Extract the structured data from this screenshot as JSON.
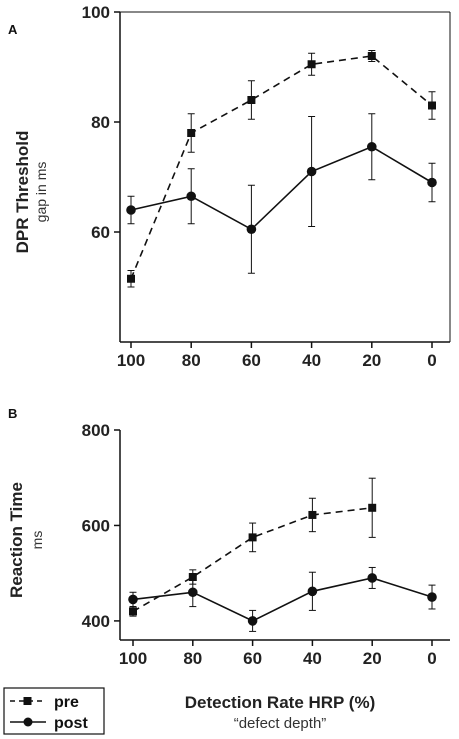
{
  "figure": {
    "xlabel": "Detection Rate HRP (%)",
    "xsublabel": "“defect depth”",
    "legend": [
      {
        "label": "pre",
        "marker": "square",
        "line": "dashed"
      },
      {
        "label": "post",
        "marker": "circle",
        "line": "solid"
      }
    ]
  },
  "chart_data": [
    {
      "panel": "A",
      "type": "line",
      "ylabel": "DPR Threshold",
      "ysublabel": "gap in ms",
      "x": [
        100,
        80,
        60,
        40,
        20,
        0
      ],
      "xticks": [
        "100",
        "80",
        "60",
        "40",
        "20",
        "0"
      ],
      "xlim": [
        100,
        0
      ],
      "yticks": [
        "60",
        "80",
        "100"
      ],
      "yticks_values": [
        60,
        80,
        100
      ],
      "ylim": [
        40,
        100
      ],
      "series": [
        {
          "name": "pre",
          "marker": "square",
          "line": "dashed",
          "values": [
            51.5,
            78,
            84,
            90.5,
            92,
            83
          ],
          "err": [
            1.5,
            3.5,
            3.5,
            2,
            1,
            2.5
          ]
        },
        {
          "name": "post",
          "marker": "circle",
          "line": "solid",
          "values": [
            64,
            66.5,
            60.5,
            71,
            75.5,
            69
          ],
          "err": [
            2.5,
            5,
            8,
            10,
            6,
            3.5
          ]
        }
      ]
    },
    {
      "panel": "B",
      "type": "line",
      "ylabel": "Reaction Time",
      "ysublabel": "ms",
      "x": [
        100,
        80,
        60,
        40,
        20,
        0
      ],
      "xticks": [
        "100",
        "80",
        "60",
        "40",
        "20",
        "0"
      ],
      "xlim": [
        100,
        0
      ],
      "yticks": [
        "400",
        "600",
        "800"
      ],
      "yticks_values": [
        400,
        600,
        800
      ],
      "ylim": [
        360,
        800
      ],
      "series": [
        {
          "name": "pre",
          "marker": "square",
          "line": "dashed",
          "values": [
            420,
            492,
            575,
            622,
            637,
            null
          ],
          "err": [
            10,
            15,
            30,
            35,
            62,
            null
          ]
        },
        {
          "name": "post",
          "marker": "circle",
          "line": "solid",
          "values": [
            445,
            460,
            400,
            462,
            490,
            450
          ],
          "err": [
            15,
            30,
            22,
            40,
            22,
            25
          ]
        }
      ]
    }
  ]
}
